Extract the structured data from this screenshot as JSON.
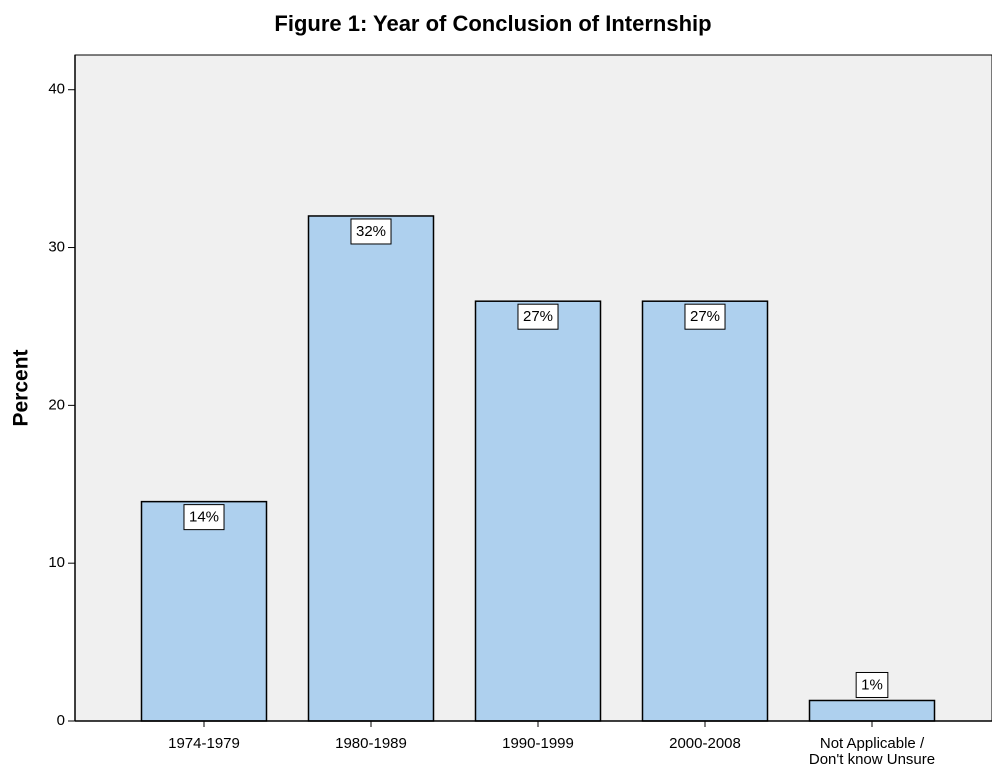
{
  "chart_data": {
    "type": "bar",
    "title": "Figure 1: Year of Conclusion of Internship",
    "y_label": "Percent",
    "categories": [
      "1974-1979",
      "1980-1989",
      "1990-1999",
      "2000-2008",
      "Not Applicable /\nDon't know  Unsure"
    ],
    "values": [
      13.9,
      32.0,
      26.6,
      26.6,
      1.3
    ],
    "value_labels": [
      "14%",
      "32%",
      "27%",
      "27%",
      "1%"
    ],
    "color": "#aed0ee",
    "ylim": [
      0,
      42.2
    ],
    "yticks": [
      0,
      10,
      20,
      30,
      40
    ],
    "grid": false
  }
}
